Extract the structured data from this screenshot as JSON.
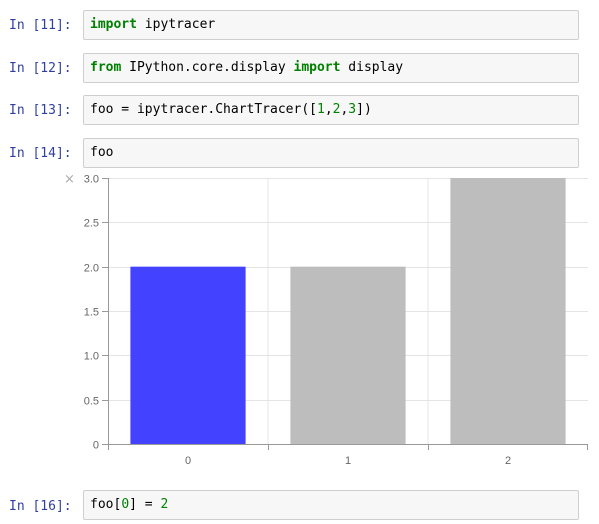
{
  "cells": [
    {
      "prompt": "In [11]:",
      "code": [
        {
          "t": "import",
          "cls": "kw"
        },
        {
          "t": " ipytracer",
          "cls": ""
        }
      ]
    },
    {
      "prompt": "In [12]:",
      "code": [
        {
          "t": "from",
          "cls": "kw"
        },
        {
          "t": " IPython.core.display ",
          "cls": ""
        },
        {
          "t": "import",
          "cls": "kw"
        },
        {
          "t": " display",
          "cls": ""
        }
      ]
    },
    {
      "prompt": "In [13]:",
      "code": [
        {
          "t": "foo = ipytracer.ChartTracer([",
          "cls": ""
        },
        {
          "t": "1",
          "cls": "num"
        },
        {
          "t": ",",
          "cls": ""
        },
        {
          "t": "2",
          "cls": "num"
        },
        {
          "t": ",",
          "cls": ""
        },
        {
          "t": "3",
          "cls": "num"
        },
        {
          "t": "])",
          "cls": ""
        }
      ]
    },
    {
      "prompt": "In [14]:",
      "code": [
        {
          "t": "foo",
          "cls": ""
        }
      ]
    },
    {
      "prompt": "In [16]:",
      "code": [
        {
          "t": "foo[",
          "cls": ""
        },
        {
          "t": "0",
          "cls": "num"
        },
        {
          "t": "] = ",
          "cls": ""
        },
        {
          "t": "2",
          "cls": "num"
        }
      ]
    }
  ],
  "output_close_icon": "×",
  "colors": {
    "highlight_bar": "#4343FF",
    "bar": "#BDBDBD",
    "grid": "#E4E4E4",
    "axis": "#999999"
  },
  "chart_data": {
    "type": "bar",
    "categories": [
      "0",
      "1",
      "2"
    ],
    "values": [
      2,
      2,
      3
    ],
    "highlighted_index": 0,
    "ylim": [
      0,
      3
    ],
    "yticks": [
      "0",
      "0.5",
      "1.0",
      "1.5",
      "2.0",
      "2.5",
      "3.0"
    ],
    "grid": true,
    "title": "",
    "xlabel": "",
    "ylabel": ""
  }
}
